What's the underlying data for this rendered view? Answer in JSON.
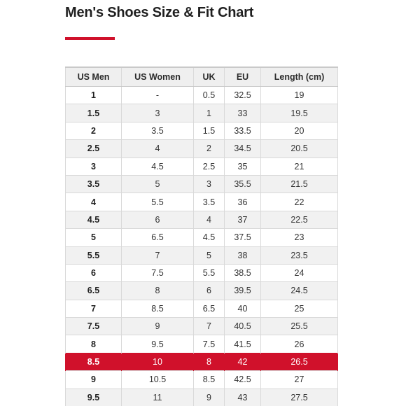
{
  "title": "Men's Shoes Size & Fit Chart",
  "colors": {
    "accent": "#d0112b",
    "header_bg": "#efefef",
    "stripe_bg": "#f1f1f1"
  },
  "table": {
    "headers": [
      "US Men",
      "US Women",
      "UK",
      "EU",
      "Length (cm)"
    ],
    "highlight_row_index": 15,
    "rows": [
      [
        "1",
        "-",
        "0.5",
        "32.5",
        "19"
      ],
      [
        "1.5",
        "3",
        "1",
        "33",
        "19.5"
      ],
      [
        "2",
        "3.5",
        "1.5",
        "33.5",
        "20"
      ],
      [
        "2.5",
        "4",
        "2",
        "34.5",
        "20.5"
      ],
      [
        "3",
        "4.5",
        "2.5",
        "35",
        "21"
      ],
      [
        "3.5",
        "5",
        "3",
        "35.5",
        "21.5"
      ],
      [
        "4",
        "5.5",
        "3.5",
        "36",
        "22"
      ],
      [
        "4.5",
        "6",
        "4",
        "37",
        "22.5"
      ],
      [
        "5",
        "6.5",
        "4.5",
        "37.5",
        "23"
      ],
      [
        "5.5",
        "7",
        "5",
        "38",
        "23.5"
      ],
      [
        "6",
        "7.5",
        "5.5",
        "38.5",
        "24"
      ],
      [
        "6.5",
        "8",
        "6",
        "39.5",
        "24.5"
      ],
      [
        "7",
        "8.5",
        "6.5",
        "40",
        "25"
      ],
      [
        "7.5",
        "9",
        "7",
        "40.5",
        "25.5"
      ],
      [
        "8",
        "9.5",
        "7.5",
        "41.5",
        "26"
      ],
      [
        "8.5",
        "10",
        "8",
        "42",
        "26.5"
      ],
      [
        "9",
        "10.5",
        "8.5",
        "42.5",
        "27"
      ],
      [
        "9.5",
        "11",
        "9",
        "43",
        "27.5"
      ]
    ]
  }
}
